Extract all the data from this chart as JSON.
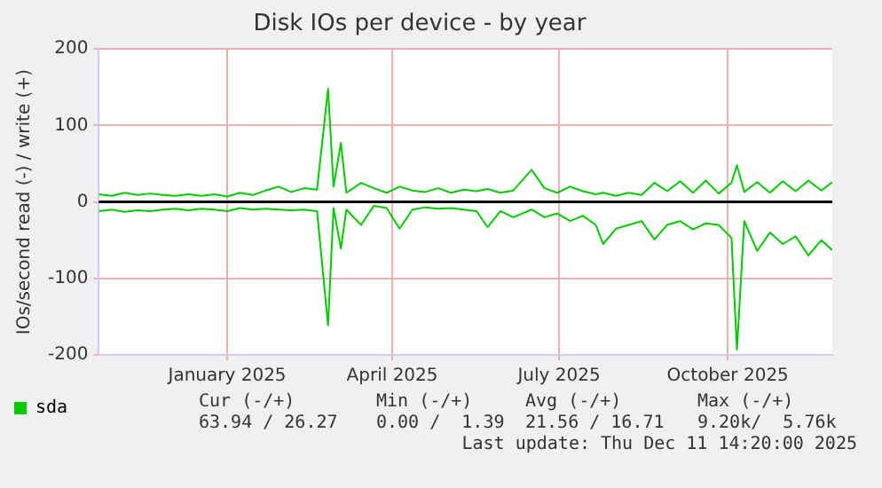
{
  "chart_data": {
    "type": "line",
    "title": "Disk IOs per device - by year",
    "ylabel": "IOs/second read (-) / write (+)",
    "x": [
      "2024-11-06",
      "2024-11-13",
      "2024-11-20",
      "2024-11-27",
      "2024-12-04",
      "2024-12-11",
      "2024-12-18",
      "2024-12-25",
      "2025-01-01",
      "2025-01-08",
      "2025-01-15",
      "2025-01-22",
      "2025-01-29",
      "2025-02-05",
      "2025-02-12",
      "2025-02-19",
      "2025-02-26",
      "2025-03-05",
      "2025-03-11",
      "2025-03-14",
      "2025-03-18",
      "2025-03-21",
      "2025-03-29",
      "2025-04-05",
      "2025-04-12",
      "2025-04-19",
      "2025-04-26",
      "2025-05-03",
      "2025-05-10",
      "2025-05-17",
      "2025-05-24",
      "2025-05-31",
      "2025-06-06",
      "2025-06-13",
      "2025-06-20",
      "2025-06-30",
      "2025-07-07",
      "2025-07-14",
      "2025-07-21",
      "2025-07-28",
      "2025-08-04",
      "2025-08-08",
      "2025-08-15",
      "2025-08-22",
      "2025-08-29",
      "2025-09-05",
      "2025-09-12",
      "2025-09-19",
      "2025-09-26",
      "2025-10-03",
      "2025-10-10",
      "2025-10-17",
      "2025-10-20",
      "2025-10-24",
      "2025-10-31",
      "2025-11-07",
      "2025-11-14",
      "2025-11-21",
      "2025-11-28",
      "2025-12-05",
      "2025-12-11"
    ],
    "series": [
      {
        "name": "sda",
        "color": "#00cc00",
        "values": [
          10,
          8,
          12,
          9,
          11,
          9,
          8,
          10,
          8,
          10,
          7,
          12,
          9,
          15,
          20,
          13,
          18,
          16,
          148,
          20,
          77,
          12,
          25,
          18,
          12,
          20,
          15,
          13,
          18,
          12,
          16,
          14,
          17,
          12,
          15,
          42,
          18,
          12,
          20,
          14,
          10,
          12,
          8,
          12,
          9,
          25,
          14,
          27,
          12,
          28,
          11,
          25,
          48,
          13,
          26,
          12,
          27,
          14,
          28,
          15,
          26
        ]
      },
      {
        "color": "#00cc00",
        "values": [
          -12,
          -10,
          -13,
          -11,
          -12,
          -10,
          -9,
          -11,
          -9,
          -10,
          -12,
          -8,
          -10,
          -9,
          -10,
          -11,
          -10,
          -12,
          -161,
          -8,
          -61,
          -10,
          -30,
          -5,
          -8,
          -35,
          -10,
          -7,
          -9,
          -8,
          -10,
          -12,
          -33,
          -12,
          -20,
          -10,
          -20,
          -15,
          -25,
          -18,
          -30,
          -55,
          -35,
          -30,
          -25,
          -49,
          -30,
          -25,
          -36,
          -28,
          -30,
          -47,
          -193,
          -25,
          -64,
          -40,
          -55,
          -45,
          -70,
          -50,
          -63
        ]
      }
    ],
    "xlim": [
      "2024-11-06",
      "2025-12-11"
    ],
    "xticks": [
      {
        "value": "2025-01-15",
        "label": "January 2025"
      },
      {
        "value": "2025-04-15",
        "label": "April 2025"
      },
      {
        "value": "2025-07-15",
        "label": "July 2025"
      },
      {
        "value": "2025-10-15",
        "label": "October 2025"
      }
    ],
    "ylim": [
      -200,
      200
    ],
    "yticks": [
      -200,
      -100,
      0,
      100,
      200
    ],
    "ref_lines": [
      {
        "axis": "y",
        "value": 0,
        "color": "#000000"
      }
    ],
    "grid": true,
    "legend": "bottom left",
    "marker": "none",
    "line_style": "solid",
    "annotations": [
      "Cur (-/+)",
      "Min (-/+)",
      "Avg (-/+)",
      "Max (-/+)",
      "63.94 / 26.27",
      "0.00 /  1.39",
      "21.56 / 16.71",
      "9.20k/  5.76k",
      "Last update: Thu Dec 11 14:20:00 2025"
    ]
  }
}
